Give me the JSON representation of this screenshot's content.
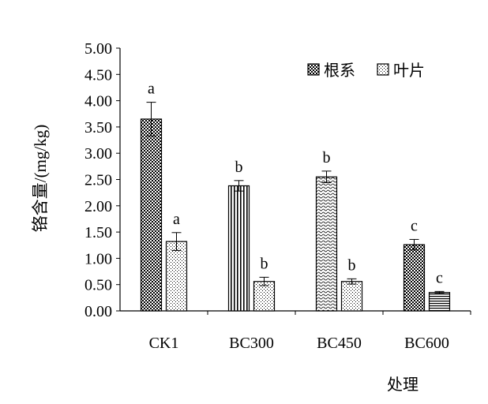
{
  "chart_data": {
    "type": "bar",
    "xlabel": "处理",
    "ylabel": "铬含量/(mg/kg)",
    "ylim": [
      0,
      5
    ],
    "yticks": [
      "0.00",
      "0.50",
      "1.00",
      "1.50",
      "2.00",
      "2.50",
      "3.00",
      "3.50",
      "4.00",
      "4.50",
      "5.00"
    ],
    "categories": [
      "CK1",
      "BC300",
      "BC450",
      "BC600"
    ],
    "grid": false,
    "legend_position": "top-right",
    "series": [
      {
        "name": "根系",
        "values": [
          3.65,
          2.38,
          2.55,
          1.26
        ],
        "errors": [
          0.32,
          0.1,
          0.11,
          0.1
        ],
        "labels": [
          "a",
          "b",
          "b",
          "c"
        ],
        "patterns": [
          "checker",
          "vstripe",
          "wave",
          "checker"
        ]
      },
      {
        "name": "叶片",
        "values": [
          1.32,
          0.56,
          0.56,
          0.35
        ],
        "errors": [
          0.17,
          0.08,
          0.05,
          0.02
        ],
        "labels": [
          "a",
          "b",
          "b",
          "c"
        ],
        "patterns": [
          "dots",
          "dots",
          "dots",
          "hstripe"
        ]
      }
    ]
  }
}
